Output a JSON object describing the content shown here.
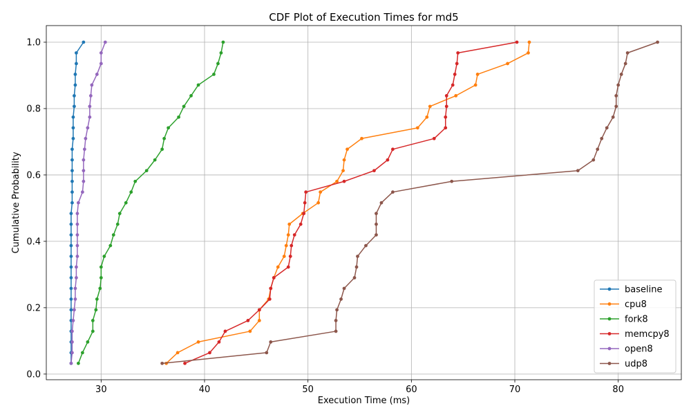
{
  "chart_data": {
    "type": "line",
    "title": "CDF Plot of Execution Times for md5",
    "xlabel": "Execution Time (ms)",
    "ylabel": "Cumulative Probability",
    "xlim": [
      24.7,
      86.1
    ],
    "ylim": [
      -0.017,
      1.05
    ],
    "xticks": [
      "30",
      "40",
      "50",
      "60",
      "70",
      "80"
    ],
    "yticks": [
      "0.0",
      "0.2",
      "0.4",
      "0.6",
      "0.8",
      "1.0"
    ],
    "grid": true,
    "legend_position": "lower-right",
    "y": [
      0.0323,
      0.0645,
      0.0968,
      0.129,
      0.1613,
      0.1935,
      0.2258,
      0.2581,
      0.2903,
      0.3226,
      0.3548,
      0.3871,
      0.4194,
      0.4516,
      0.4839,
      0.5161,
      0.5484,
      0.5806,
      0.6129,
      0.6452,
      0.6774,
      0.7097,
      0.7419,
      0.7742,
      0.8065,
      0.8387,
      0.871,
      0.9032,
      0.9355,
      0.9677,
      1.0
    ],
    "series": [
      {
        "name": "baseline",
        "color": "#1f77b4",
        "x": [
          27.1,
          27.1,
          27.1,
          27.1,
          27.1,
          27.1,
          27.1,
          27.1,
          27.1,
          27.1,
          27.1,
          27.1,
          27.1,
          27.1,
          27.1,
          27.2,
          27.2,
          27.2,
          27.2,
          27.2,
          27.2,
          27.3,
          27.3,
          27.3,
          27.4,
          27.4,
          27.5,
          27.5,
          27.6,
          27.6,
          28.3
        ]
      },
      {
        "name": "cpu8",
        "color": "#ff7f0e",
        "x": [
          36.3,
          37.4,
          39.4,
          44.4,
          45.3,
          45.3,
          46.2,
          46.4,
          46.7,
          47.1,
          47.7,
          47.9,
          48.1,
          48.2,
          49.5,
          51.0,
          51.2,
          52.8,
          53.4,
          53.5,
          53.8,
          55.2,
          60.6,
          61.5,
          61.8,
          64.3,
          66.2,
          66.4,
          69.3,
          71.3,
          71.4
        ]
      },
      {
        "name": "fork8",
        "color": "#2ca02c",
        "x": [
          27.8,
          28.2,
          28.7,
          29.2,
          29.2,
          29.5,
          29.6,
          29.9,
          30.0,
          30.0,
          30.3,
          30.9,
          31.2,
          31.6,
          31.8,
          32.4,
          32.9,
          33.3,
          34.4,
          35.2,
          35.9,
          36.1,
          36.5,
          37.5,
          38.0,
          38.7,
          39.4,
          40.9,
          41.3,
          41.6,
          41.8
        ]
      },
      {
        "name": "memcpy8",
        "color": "#d62728",
        "x": [
          38.1,
          40.5,
          41.4,
          42.0,
          44.2,
          45.3,
          46.3,
          46.4,
          46.7,
          48.1,
          48.3,
          48.4,
          48.7,
          49.3,
          49.6,
          49.7,
          49.8,
          53.5,
          56.4,
          57.7,
          58.2,
          62.2,
          63.3,
          63.3,
          63.4,
          63.4,
          64.0,
          64.2,
          64.4,
          64.5,
          70.2
        ]
      },
      {
        "name": "open8",
        "color": "#9467bd",
        "x": [
          27.1,
          27.2,
          27.2,
          27.2,
          27.3,
          27.4,
          27.5,
          27.5,
          27.6,
          27.6,
          27.7,
          27.7,
          27.7,
          27.7,
          27.7,
          27.8,
          28.2,
          28.3,
          28.3,
          28.3,
          28.4,
          28.5,
          28.7,
          28.9,
          28.9,
          29.0,
          29.1,
          29.6,
          30.0,
          30.0,
          30.4
        ]
      },
      {
        "name": "udp8",
        "color": "#8c564b",
        "x": [
          35.9,
          46.0,
          46.4,
          52.7,
          52.7,
          52.8,
          53.2,
          53.5,
          54.5,
          54.7,
          54.8,
          55.6,
          56.6,
          56.6,
          56.6,
          57.1,
          58.2,
          63.9,
          76.1,
          77.6,
          78.0,
          78.4,
          78.9,
          79.5,
          79.8,
          79.8,
          80.0,
          80.3,
          80.7,
          80.9,
          83.8
        ]
      }
    ]
  }
}
